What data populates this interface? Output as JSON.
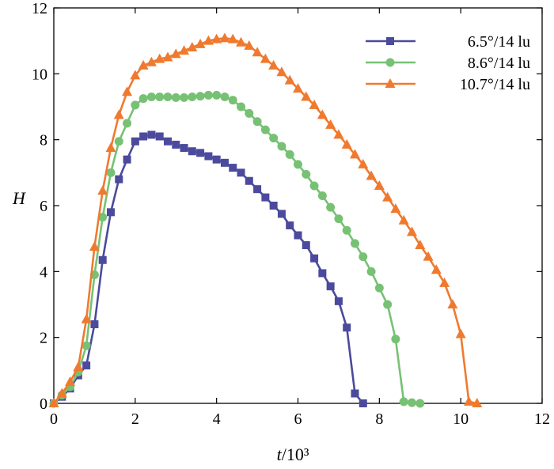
{
  "chart_data": {
    "type": "line",
    "title": "",
    "xlabel": "t",
    "xlabel_unit": "/10³",
    "ylabel": "H",
    "xlim": [
      0,
      12
    ],
    "ylim": [
      0,
      12
    ],
    "xticks": [
      "0",
      "2",
      "4",
      "6",
      "8",
      "10",
      "12"
    ],
    "yticks": [
      "0",
      "2",
      "4",
      "6",
      "8",
      "10",
      "12"
    ],
    "grid": false,
    "legend_position": "top-right",
    "series": [
      {
        "name": "6.5°/14 lu",
        "color": "#4b4a9c",
        "marker": "square",
        "x": [
          0,
          0.2,
          0.4,
          0.6,
          0.8,
          1.0,
          1.2,
          1.4,
          1.6,
          1.8,
          2.0,
          2.2,
          2.4,
          2.6,
          2.8,
          3.0,
          3.2,
          3.4,
          3.6,
          3.8,
          4.0,
          4.2,
          4.4,
          4.6,
          4.8,
          5.0,
          5.2,
          5.4,
          5.6,
          5.8,
          6.0,
          6.2,
          6.4,
          6.6,
          6.8,
          7.0,
          7.2,
          7.4,
          7.6
        ],
        "y": [
          0,
          0.2,
          0.45,
          0.85,
          1.15,
          2.4,
          4.35,
          5.8,
          6.8,
          7.4,
          7.95,
          8.1,
          8.15,
          8.1,
          7.95,
          7.85,
          7.75,
          7.65,
          7.6,
          7.5,
          7.4,
          7.3,
          7.15,
          7.0,
          6.75,
          6.5,
          6.25,
          6.0,
          5.75,
          5.4,
          5.1,
          4.8,
          4.4,
          3.95,
          3.55,
          3.1,
          2.3,
          0.3,
          0
        ]
      },
      {
        "name": "8.6°/14 lu",
        "color": "#77c174",
        "marker": "circle",
        "x": [
          0,
          0.2,
          0.4,
          0.6,
          0.8,
          1.0,
          1.2,
          1.4,
          1.6,
          1.8,
          2.0,
          2.2,
          2.4,
          2.6,
          2.8,
          3.0,
          3.2,
          3.4,
          3.6,
          3.8,
          4.0,
          4.2,
          4.4,
          4.6,
          4.8,
          5.0,
          5.2,
          5.4,
          5.6,
          5.8,
          6.0,
          6.2,
          6.4,
          6.6,
          6.8,
          7.0,
          7.2,
          7.4,
          7.6,
          7.8,
          8.0,
          8.2,
          8.4,
          8.6,
          8.8,
          9.0
        ],
        "y": [
          0,
          0.25,
          0.5,
          0.95,
          1.75,
          3.9,
          5.65,
          7.0,
          7.95,
          8.5,
          9.05,
          9.25,
          9.3,
          9.3,
          9.3,
          9.28,
          9.28,
          9.3,
          9.32,
          9.35,
          9.35,
          9.3,
          9.2,
          9.0,
          8.8,
          8.55,
          8.3,
          8.05,
          7.8,
          7.55,
          7.25,
          6.95,
          6.6,
          6.3,
          5.95,
          5.6,
          5.25,
          4.85,
          4.45,
          4.0,
          3.5,
          3.0,
          1.95,
          0.05,
          0.02,
          0
        ]
      },
      {
        "name": "10.7°/14 lu",
        "color": "#ef7a2f",
        "marker": "triangle",
        "x": [
          0,
          0.2,
          0.4,
          0.6,
          0.8,
          1.0,
          1.2,
          1.4,
          1.6,
          1.8,
          2.0,
          2.2,
          2.4,
          2.6,
          2.8,
          3.0,
          3.2,
          3.4,
          3.6,
          3.8,
          4.0,
          4.2,
          4.4,
          4.6,
          4.8,
          5.0,
          5.2,
          5.4,
          5.6,
          5.8,
          6.0,
          6.2,
          6.4,
          6.6,
          6.8,
          7.0,
          7.2,
          7.4,
          7.6,
          7.8,
          8.0,
          8.2,
          8.4,
          8.6,
          8.8,
          9.0,
          9.2,
          9.4,
          9.6,
          9.8,
          10.0,
          10.2,
          10.4
        ],
        "y": [
          0,
          0.3,
          0.65,
          1.1,
          2.55,
          4.75,
          6.45,
          7.75,
          8.75,
          9.45,
          9.95,
          10.25,
          10.35,
          10.45,
          10.5,
          10.6,
          10.7,
          10.8,
          10.9,
          11.0,
          11.05,
          11.08,
          11.05,
          10.95,
          10.85,
          10.65,
          10.45,
          10.25,
          10.05,
          9.8,
          9.55,
          9.3,
          9.05,
          8.75,
          8.45,
          8.15,
          7.85,
          7.55,
          7.25,
          6.9,
          6.6,
          6.25,
          5.9,
          5.55,
          5.2,
          4.8,
          4.45,
          4.05,
          3.65,
          3.0,
          2.1,
          0.05,
          0
        ]
      }
    ]
  }
}
